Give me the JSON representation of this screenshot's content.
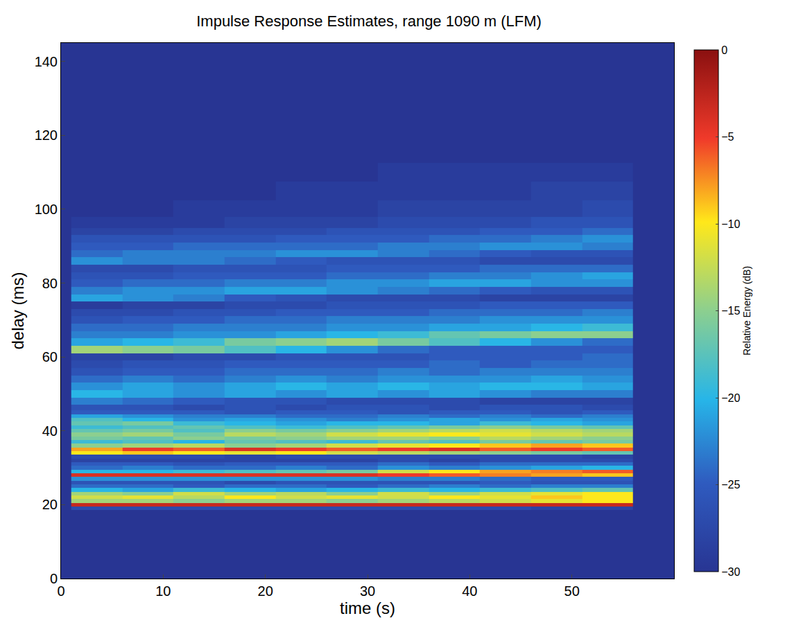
{
  "chart_data": {
    "type": "heatmap",
    "title": "Impulse Response Estimates, range 1090 m (LFM)",
    "x_label": "time (s)",
    "y_label": "delay (ms)",
    "xlim": [
      0,
      60
    ],
    "ylim": [
      0,
      145
    ],
    "xticks": [
      0,
      10,
      20,
      30,
      40,
      50
    ],
    "yticks": [
      0,
      20,
      40,
      60,
      80,
      100,
      120,
      140
    ],
    "x": [
      3.5,
      8.5,
      13.5,
      18.5,
      23.5,
      28.5,
      33.5,
      38.5,
      43.5,
      48.5,
      53.5
    ],
    "y": [
      0,
      10,
      16,
      18,
      19,
      20,
      21,
      22,
      23,
      24,
      25,
      26,
      27,
      28,
      29,
      30,
      31,
      32,
      33,
      34,
      35,
      36,
      37,
      38,
      39,
      40,
      41,
      42,
      43,
      44,
      45,
      46,
      48,
      50,
      52,
      54,
      56,
      58,
      60,
      62,
      64,
      66,
      68,
      70,
      72,
      74,
      76,
      78,
      80,
      82,
      84,
      86,
      88,
      90,
      92,
      94,
      96,
      100,
      105,
      110,
      115,
      120,
      130,
      144
    ],
    "z": [
      [
        -30,
        -30,
        -30,
        -30,
        -30,
        -30,
        -30,
        -30,
        -30,
        -30,
        -30
      ],
      [
        -30,
        -30,
        -30,
        -30,
        -30,
        -30,
        -30,
        -30,
        -30,
        -30,
        -30
      ],
      [
        -30,
        -30,
        -30,
        -30,
        -30,
        -30,
        -30,
        -30,
        -30,
        -30,
        -30
      ],
      [
        -30,
        -30,
        -30,
        -30,
        -30,
        -30,
        -30,
        -30,
        -30,
        -30,
        -30
      ],
      [
        -27,
        -27,
        -27,
        -27,
        -27,
        -27,
        -27,
        -27,
        -27,
        -28,
        -28
      ],
      [
        -3,
        -3,
        -3,
        -3,
        -3,
        -3,
        -3,
        -3,
        -3,
        -3,
        -3
      ],
      [
        -14,
        -14,
        -15,
        -14,
        -14,
        -15,
        -14,
        -13,
        -12,
        -11,
        -10
      ],
      [
        -12,
        -11,
        -13,
        -10,
        -12,
        -11,
        -12,
        -10,
        -11,
        -9,
        -10
      ],
      [
        -14,
        -15,
        -12,
        -14,
        -13,
        -15,
        -12,
        -14,
        -12,
        -11,
        -10
      ],
      [
        -20,
        -21,
        -19,
        -20,
        -21,
        -20,
        -19,
        -20,
        -19,
        -18,
        -17
      ],
      [
        -24,
        -24,
        -25,
        -24,
        -24,
        -25,
        -24,
        -23,
        -24,
        -23,
        -23
      ],
      [
        -26,
        -26,
        -26,
        -27,
        -26,
        -26,
        -26,
        -26,
        -25,
        -26,
        -26
      ],
      [
        -22,
        -22,
        -22,
        -22,
        -22,
        -22,
        -23,
        -23,
        -24,
        -25,
        -25
      ],
      [
        -4,
        -4,
        -4,
        -4,
        -4,
        -4,
        -5,
        -6,
        -7,
        -8,
        -9
      ],
      [
        -20,
        -20,
        -19,
        -18,
        -17,
        -16,
        -12,
        -10,
        -8,
        -7,
        -6
      ],
      [
        -24,
        -23,
        -24,
        -24,
        -23,
        -24,
        -22,
        -23,
        -22,
        -21,
        -20
      ],
      [
        -25,
        -25,
        -26,
        -25,
        -25,
        -25,
        -24,
        -25,
        -24,
        -24,
        -24
      ],
      [
        -28,
        -28,
        -28,
        -28,
        -28,
        -28,
        -27,
        -28,
        -27,
        -27,
        -27
      ],
      [
        -27,
        -27,
        -27,
        -28,
        -27,
        -27,
        -27,
        -27,
        -27,
        -27,
        -28
      ],
      [
        -10,
        -9,
        -10,
        -11,
        -10,
        -12,
        -13,
        -14,
        -15,
        -16,
        -17
      ],
      [
        -8,
        -5,
        -6,
        -4,
        -5,
        -6,
        -5,
        -4,
        -6,
        -5,
        -6
      ],
      [
        -15,
        -14,
        -13,
        -15,
        -14,
        -12,
        -11,
        -10,
        -9,
        -8,
        -9
      ],
      [
        -19,
        -18,
        -20,
        -17,
        -18,
        -19,
        -17,
        -18,
        -16,
        -17,
        -16
      ],
      [
        -16,
        -17,
        -15,
        -16,
        -15,
        -14,
        -14,
        -15,
        -13,
        -14,
        -15
      ],
      [
        -15,
        -14,
        -16,
        -13,
        -14,
        -12,
        -11,
        -10,
        -11,
        -12,
        -13
      ],
      [
        -17,
        -16,
        -18,
        -15,
        -16,
        -15,
        -14,
        -13,
        -12,
        -13,
        -14
      ],
      [
        -19,
        -18,
        -17,
        -18,
        -19,
        -18,
        -17,
        -16,
        -15,
        -16,
        -17
      ],
      [
        -17,
        -16,
        -19,
        -20,
        -21,
        -20,
        -20,
        -21,
        -19,
        -20,
        -21
      ],
      [
        -18,
        -20,
        -22,
        -21,
        -22,
        -23,
        -22,
        -21,
        -22,
        -21,
        -22
      ],
      [
        -21,
        -22,
        -23,
        -23,
        -24,
        -24,
        -23,
        -24,
        -23,
        -24,
        -23
      ],
      [
        -25,
        -25,
        -25,
        -26,
        -25,
        -25,
        -26,
        -25,
        -25,
        -26,
        -25
      ],
      [
        -26,
        -26,
        -27,
        -26,
        -27,
        -26,
        -26,
        -27,
        -26,
        -26,
        -27
      ],
      [
        -23,
        -24,
        -25,
        -26,
        -26,
        -27,
        -27,
        -27,
        -28,
        -28,
        -28
      ],
      [
        -20,
        -21,
        -22,
        -21,
        -22,
        -21,
        -22,
        -21,
        -22,
        -23,
        -23
      ],
      [
        -22,
        -21,
        -22,
        -21,
        -20,
        -21,
        -20,
        -21,
        -20,
        -20,
        -21
      ],
      [
        -24,
        -23,
        -24,
        -23,
        -22,
        -23,
        -22,
        -22,
        -22,
        -21,
        -22
      ],
      [
        -26,
        -25,
        -25,
        -24,
        -24,
        -24,
        -23,
        -24,
        -23,
        -23,
        -23
      ],
      [
        -27,
        -26,
        -26,
        -25,
        -25,
        -25,
        -25,
        -24,
        -25,
        -24,
        -24
      ],
      [
        -28,
        -28,
        -27,
        -27,
        -26,
        -26,
        -26,
        -25,
        -25,
        -25,
        -24
      ],
      [
        -14,
        -15,
        -16,
        -18,
        -20,
        -22,
        -24,
        -25,
        -25,
        -25,
        -25
      ],
      [
        -21,
        -20,
        -19,
        -16,
        -15,
        -14,
        -16,
        -18,
        -20,
        -22,
        -24
      ],
      [
        -23,
        -23,
        -22,
        -22,
        -21,
        -20,
        -19,
        -17,
        -16,
        -15,
        -15
      ],
      [
        -24,
        -24,
        -23,
        -23,
        -23,
        -22,
        -22,
        -21,
        -21,
        -20,
        -19
      ],
      [
        -26,
        -25,
        -25,
        -24,
        -24,
        -23,
        -23,
        -23,
        -22,
        -22,
        -22
      ],
      [
        -27,
        -27,
        -26,
        -26,
        -25,
        -25,
        -25,
        -24,
        -24,
        -24,
        -23
      ],
      [
        -29,
        -28,
        -28,
        -27,
        -27,
        -26,
        -26,
        -26,
        -25,
        -25,
        -25
      ],
      [
        -21,
        -22,
        -23,
        -25,
        -26,
        -27,
        -27,
        -27,
        -28,
        -28,
        -28
      ],
      [
        -23,
        -22,
        -22,
        -21,
        -21,
        -22,
        -23,
        -24,
        -25,
        -26,
        -26
      ],
      [
        -25,
        -24,
        -24,
        -23,
        -23,
        -22,
        -22,
        -21,
        -21,
        -22,
        -22
      ],
      [
        -26,
        -26,
        -25,
        -25,
        -25,
        -24,
        -24,
        -23,
        -23,
        -22,
        -21
      ],
      [
        -27,
        -27,
        -26,
        -26,
        -26,
        -25,
        -25,
        -25,
        -24,
        -24,
        -24
      ],
      [
        -22,
        -23,
        -23,
        -24,
        -25,
        -26,
        -26,
        -26,
        -27,
        -27,
        -27
      ],
      [
        -24,
        -23,
        -23,
        -23,
        -22,
        -22,
        -23,
        -24,
        -25,
        -26,
        -26
      ],
      [
        -25,
        -25,
        -24,
        -24,
        -24,
        -24,
        -23,
        -23,
        -22,
        -22,
        -23
      ],
      [
        -26,
        -26,
        -26,
        -26,
        -25,
        -25,
        -25,
        -24,
        -24,
        -23,
        -22
      ],
      [
        -28,
        -28,
        -27,
        -27,
        -27,
        -26,
        -26,
        -26,
        -25,
        -25,
        -24
      ],
      [
        -29,
        -29,
        -29,
        -28,
        -28,
        -28,
        -27,
        -27,
        -27,
        -26,
        -26
      ],
      [
        -30,
        -30,
        -29,
        -29,
        -29,
        -29,
        -28,
        -28,
        -28,
        -28,
        -27
      ],
      [
        -30,
        -30,
        -30,
        -30,
        -29,
        -29,
        -29,
        -29,
        -29,
        -28,
        -28
      ],
      [
        -30,
        -30,
        -30,
        -30,
        -30,
        -30,
        -29,
        -29,
        -29,
        -29,
        -29
      ],
      [
        -30,
        -30,
        -30,
        -30,
        -30,
        -30,
        -30,
        -30,
        -30,
        -30,
        -30
      ],
      [
        -30,
        -30,
        -30,
        -30,
        -30,
        -30,
        -30,
        -30,
        -30,
        -30,
        -30
      ],
      [
        -30,
        -30,
        -30,
        -30,
        -30,
        -30,
        -30,
        -30,
        -30,
        -30,
        -30
      ],
      [
        -30,
        -30,
        -30,
        -30,
        -30,
        -30,
        -30,
        -30,
        -30,
        -30,
        -30
      ]
    ],
    "colorbar": {
      "title": "Relative Energy (dB)",
      "range": [
        -30,
        0
      ],
      "ticks": [
        -30,
        -25,
        -20,
        -15,
        -10,
        -5,
        0
      ]
    },
    "grid": false
  }
}
